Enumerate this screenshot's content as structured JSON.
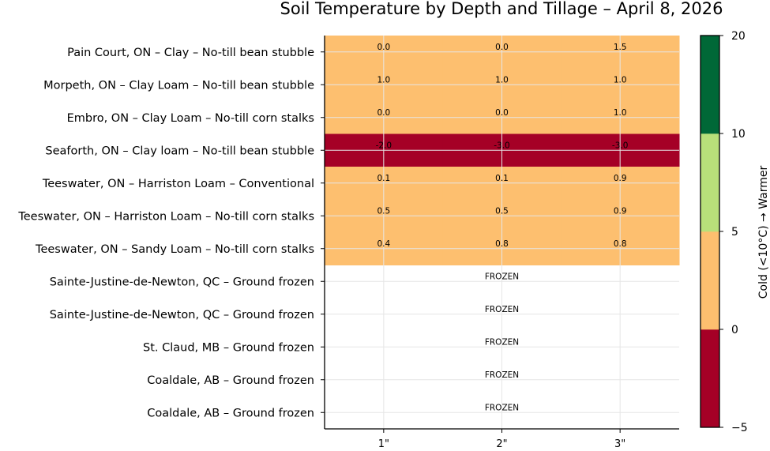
{
  "chart_data": {
    "type": "heatmap",
    "title": "Soil Temperature by Depth and Tillage – April 8, 2026",
    "columns": [
      "1\"",
      "2\"",
      "3\""
    ],
    "rows": [
      {
        "label": "Pain Court, ON – Clay  – No-till bean stubble",
        "values": [
          0.0,
          0.0,
          1.5
        ],
        "text": [
          "0.0",
          "0.0",
          "1.5"
        ]
      },
      {
        "label": "Morpeth, ON – Clay Loam  – No-till bean stubble",
        "values": [
          1.0,
          1.0,
          1.0
        ],
        "text": [
          "1.0",
          "1.0",
          "1.0"
        ]
      },
      {
        "label": "Embro, ON – Clay Loam  – No-till corn stalks",
        "values": [
          0.0,
          0.0,
          1.0
        ],
        "text": [
          "0.0",
          "0.0",
          "1.0"
        ]
      },
      {
        "label": "Seaforth, ON – Clay loam  – No-till bean stubble",
        "values": [
          -2.0,
          -3.0,
          -3.0
        ],
        "text": [
          "-2.0",
          "-3.0",
          "-3.0"
        ]
      },
      {
        "label": "Teeswater, ON – Harriston Loam – Conventional ",
        "values": [
          0.1,
          0.1,
          0.9
        ],
        "text": [
          "0.1",
          "0.1",
          "0.9"
        ]
      },
      {
        "label": "Teeswater, ON – Harriston Loam – No-till corn stalks",
        "values": [
          0.5,
          0.5,
          0.9
        ],
        "text": [
          "0.5",
          "0.5",
          "0.9"
        ]
      },
      {
        "label": "Teeswater, ON – Sandy Loam  – No-till corn stalks",
        "values": [
          0.4,
          0.8,
          0.8
        ],
        "text": [
          "0.4",
          "0.8",
          "0.8"
        ]
      },
      {
        "label": "Sainte-Justine-de-Newton, QC – Ground frozen",
        "values": null,
        "note": "FROZEN"
      },
      {
        "label": "Sainte-Justine-de-Newton, QC – Ground frozen",
        "values": null,
        "note": "FROZEN"
      },
      {
        "label": "St. Claud, MB – Ground frozen",
        "values": null,
        "note": "FROZEN"
      },
      {
        "label": "Coaldale, AB – Ground frozen",
        "values": null,
        "note": "FROZEN"
      },
      {
        "label": "Coaldale, AB – Ground frozen",
        "values": null,
        "note": "FROZEN"
      }
    ],
    "colorbar": {
      "label": "Cold (<10°C) → Warmer",
      "bounds": [
        -5,
        0,
        5,
        10,
        20
      ],
      "colors": [
        "#a50026",
        "#fdbf6f",
        "#b8e07a",
        "#006837"
      ],
      "tick_labels": [
        "−5",
        "0",
        "5",
        "10",
        "20"
      ]
    },
    "grid": true
  }
}
